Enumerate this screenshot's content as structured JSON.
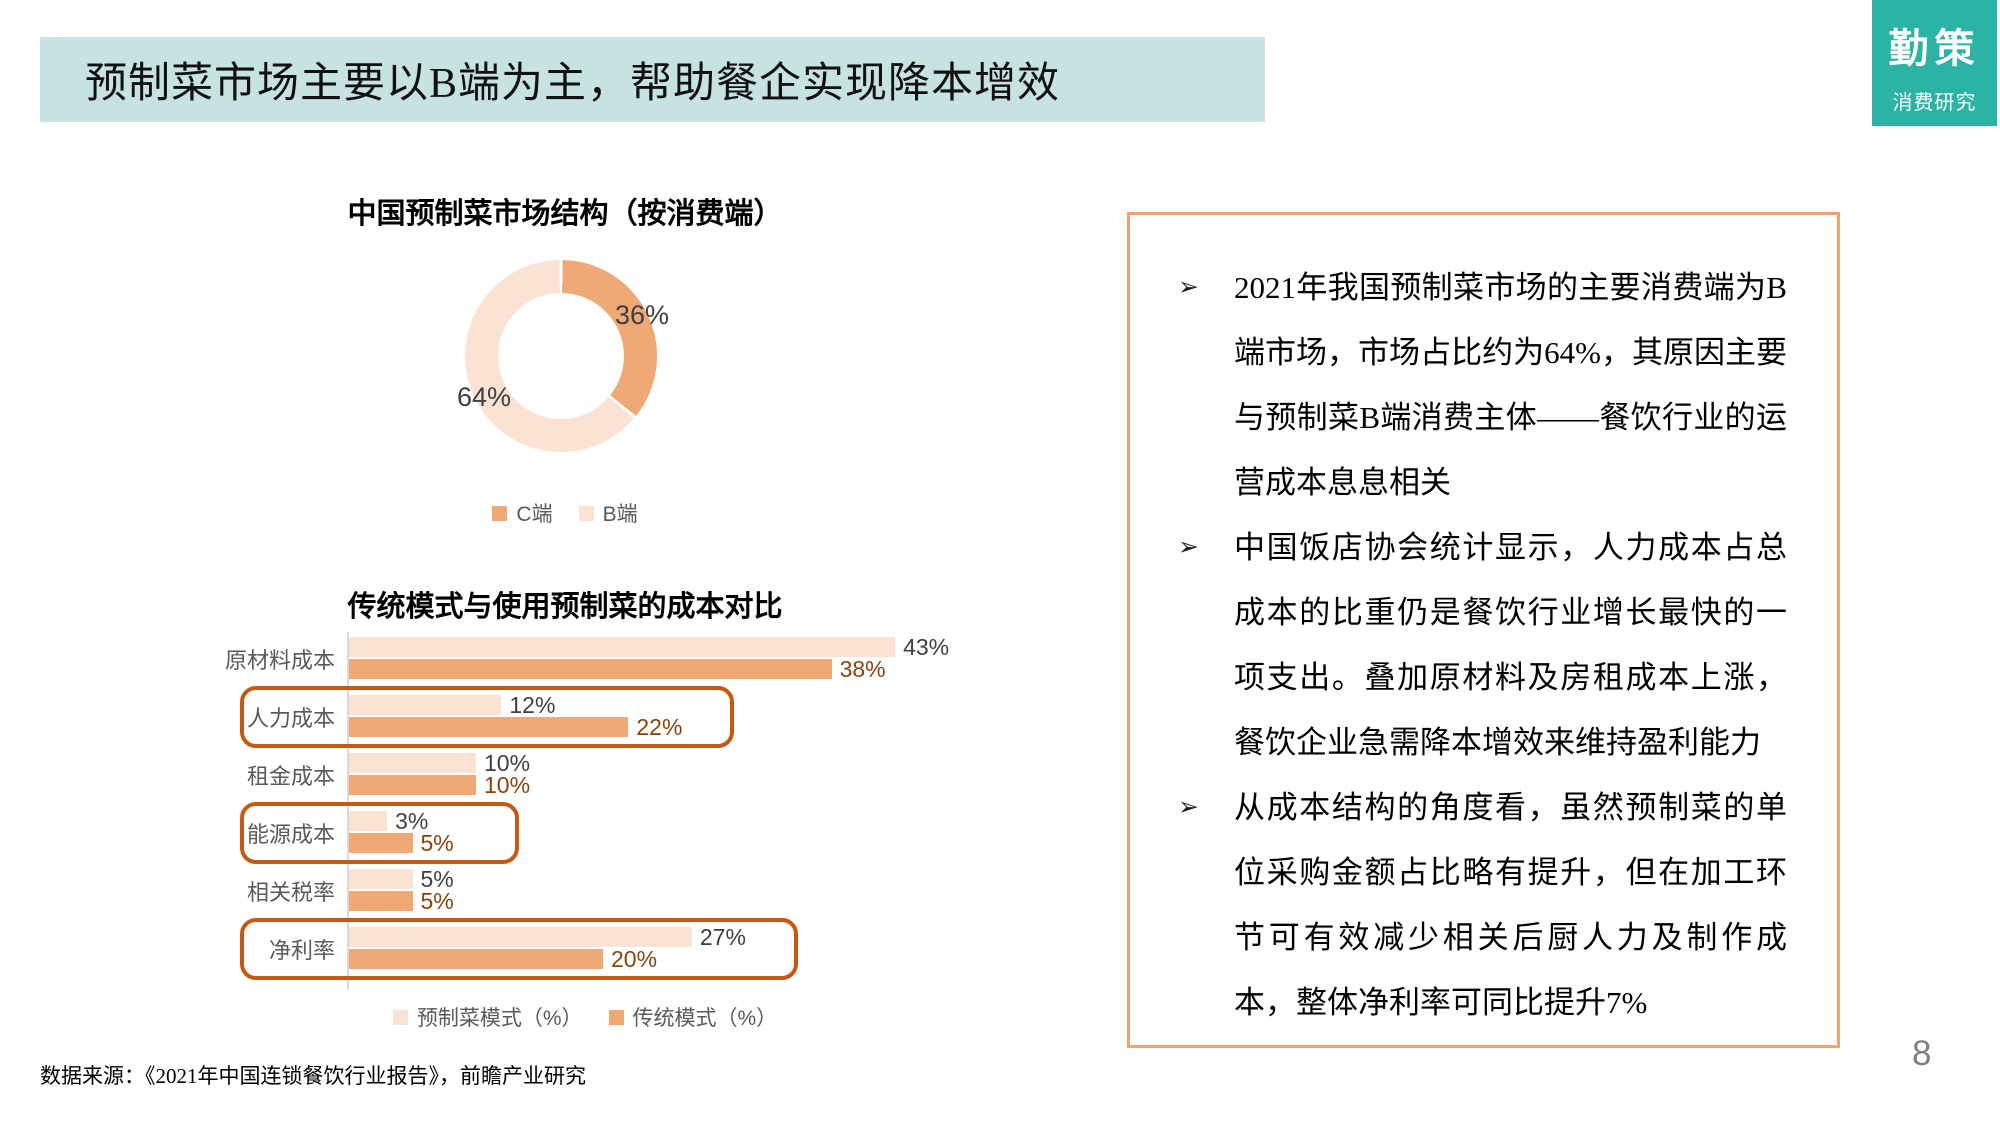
{
  "header": {
    "title": "预制菜市场主要以B端为主，帮助餐企实现降本增效",
    "title_bar_color": "#C7E3E1",
    "logo_line1": "勤策",
    "logo_line2": "消费研究",
    "logo_color": "#2BB3A6"
  },
  "colors": {
    "series_light": "#FAE3D3",
    "series_dark": "#F0A875",
    "highlight_border": "#C55812",
    "dark_value_text": "#8A430C",
    "light_value_text": "#3f3f3f"
  },
  "chart_data": [
    {
      "type": "pie",
      "donut": true,
      "title": "中国预制菜市场结构（按消费端）",
      "labels": [
        "C端",
        "B端"
      ],
      "values": [
        36,
        64
      ],
      "data_labels": [
        "36%",
        "64%"
      ],
      "colors": [
        "#F0A875",
        "#FAE3D3"
      ],
      "legend_position": "bottom",
      "start_angle": "top",
      "direction": "clockwise"
    },
    {
      "type": "bar",
      "orientation": "horizontal",
      "title": "传统模式与使用预制菜的成本对比",
      "categories": [
        "原材料成本",
        "人力成本",
        "租金成本",
        "能源成本",
        "相关税率",
        "净利率"
      ],
      "series": [
        {
          "name": "预制菜模式（%）",
          "color": "#FAE3D3",
          "values": [
            43,
            12,
            10,
            3,
            5,
            27
          ]
        },
        {
          "name": "传统模式（%）",
          "color": "#F0A875",
          "values": [
            38,
            22,
            10,
            5,
            5,
            20
          ]
        }
      ],
      "value_suffix": "%",
      "xlim": [
        0,
        45
      ],
      "grid": false,
      "legend_position": "bottom",
      "highlighted_categories": [
        "人力成本",
        "能源成本",
        "净利率"
      ]
    }
  ],
  "panel": {
    "bullet_marker": "➢",
    "bullets": [
      "2021年我国预制菜市场的主要消费端为B端市场，市场占比约为64%，其原因主要与预制菜B端消费主体——餐饮行业的运营成本息息相关",
      "中国饭店协会统计显示，人力成本占总成本的比重仍是餐饮行业增长最快的一项支出。叠加原材料及房租成本上涨，餐饮企业急需降本增效来维持盈利能力",
      "从成本结构的角度看，虽然预制菜的单位采购金额占比略有提升，但在加工环节可有效减少相关后厨人力及制作成本，整体净利率可同比提升7%"
    ]
  },
  "footer": {
    "source": "数据来源：《2021年中国连锁餐饮行业报告》，前瞻产业研究",
    "page": "8"
  }
}
